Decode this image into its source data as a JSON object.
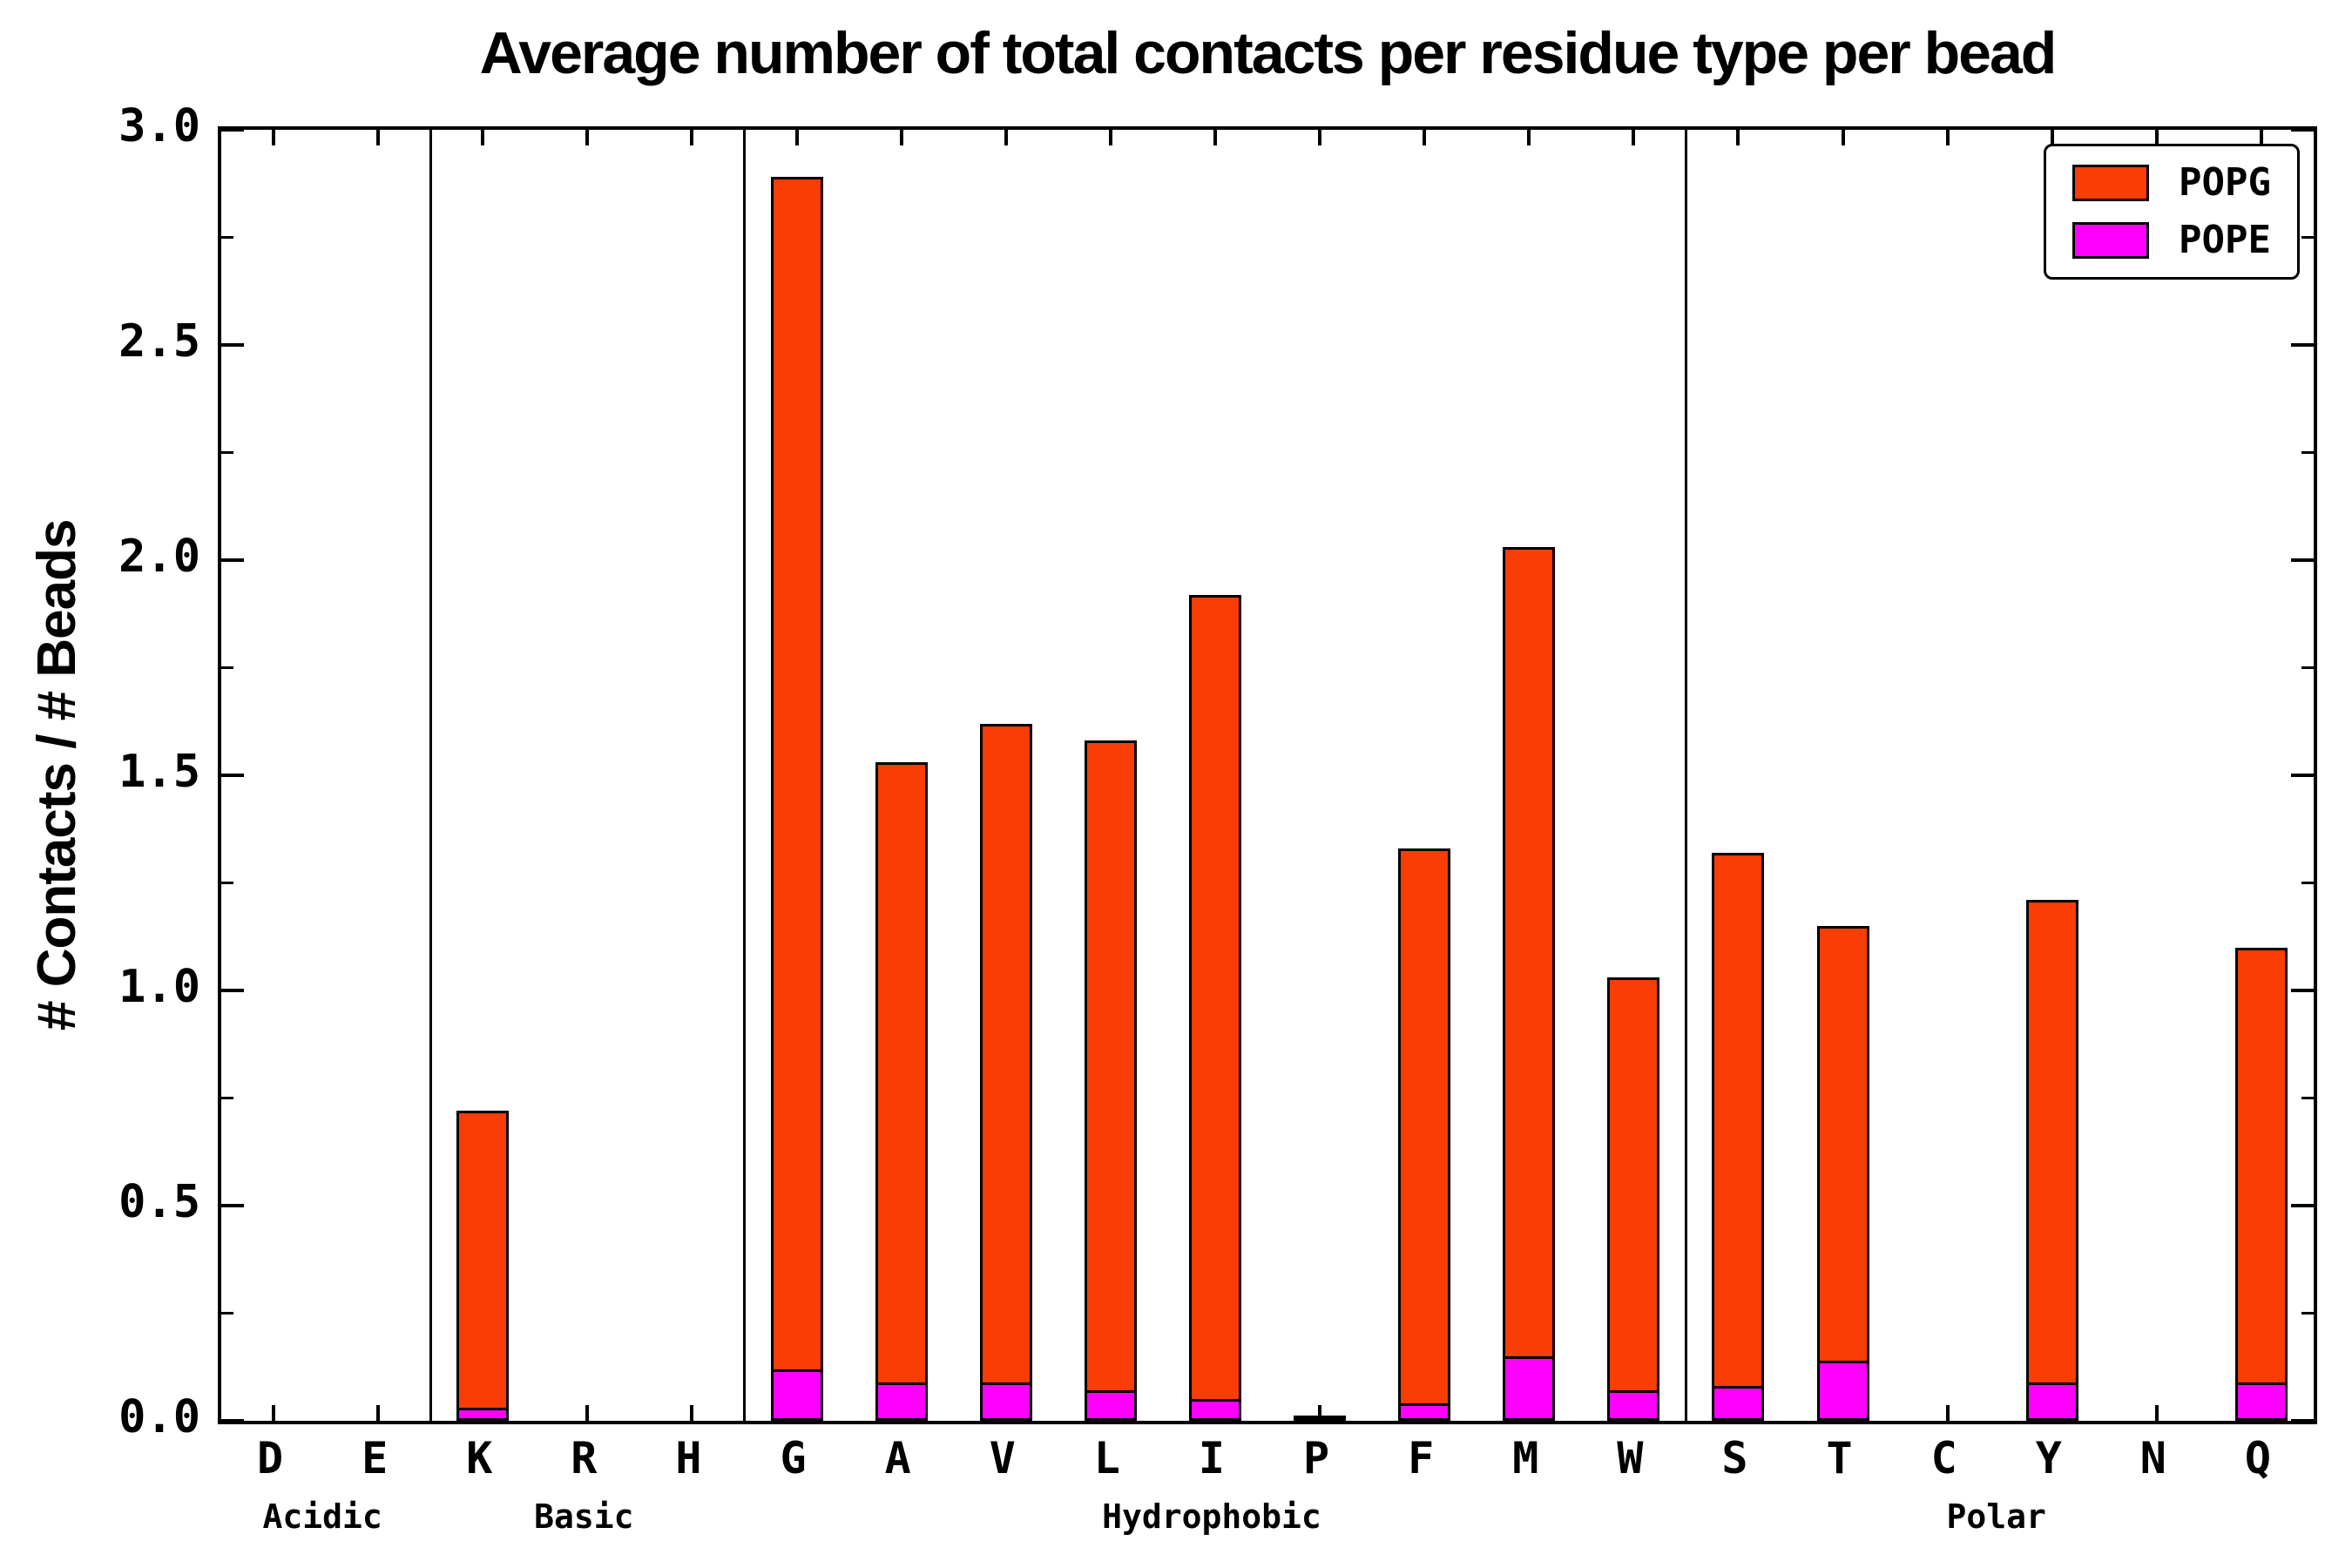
{
  "chart_data": {
    "type": "bar",
    "stacked": true,
    "title": "Average number of total contacts per residue type per bead",
    "xlabel": "",
    "ylabel": "# Contacts / # Beads",
    "ylim": [
      0,
      3.0
    ],
    "yticks": [
      "0.0",
      "0.5",
      "1.0",
      "1.5",
      "2.0",
      "2.5",
      "3.0"
    ],
    "ytick_values": [
      0.0,
      0.5,
      1.0,
      1.5,
      2.0,
      2.5,
      3.0
    ],
    "ytick_minor_step": 0.25,
    "grid": false,
    "legend_position": "upper right",
    "legend": [
      {
        "label": "POPG",
        "color": "#fa3c05"
      },
      {
        "label": "POPE",
        "color": "#ff00ff"
      }
    ],
    "groups": [
      {
        "label": "Acidic",
        "categories": [
          "D",
          "E"
        ]
      },
      {
        "label": "Basic",
        "categories": [
          "K",
          "R",
          "H"
        ]
      },
      {
        "label": "Hydrophobic",
        "categories": [
          "G",
          "A",
          "V",
          "L",
          "I",
          "P",
          "F",
          "M",
          "W"
        ]
      },
      {
        "label": "Polar",
        "categories": [
          "S",
          "T",
          "C",
          "Y",
          "N",
          "Q"
        ]
      }
    ],
    "stack_order": [
      "POPE",
      "POPG"
    ],
    "series": [
      {
        "name": "POPE",
        "color": "#ff00ff",
        "values": {
          "D": 0.0,
          "E": 0.0,
          "K": 0.03,
          "R": 0.0,
          "H": 0.0,
          "G": 0.12,
          "A": 0.09,
          "V": 0.09,
          "L": 0.07,
          "I": 0.05,
          "P": 0.005,
          "F": 0.04,
          "M": 0.15,
          "W": 0.07,
          "S": 0.08,
          "T": 0.14,
          "C": 0.0,
          "Y": 0.09,
          "N": 0.0,
          "Q": 0.09
        }
      },
      {
        "name": "POPG",
        "color": "#fa3c05",
        "values": {
          "D": 0.0,
          "E": 0.0,
          "K": 0.69,
          "R": 0.0,
          "H": 0.0,
          "G": 2.77,
          "A": 1.44,
          "V": 1.53,
          "L": 1.51,
          "I": 1.87,
          "P": 0.005,
          "F": 1.29,
          "M": 1.88,
          "W": 0.96,
          "S": 1.24,
          "T": 1.01,
          "C": 0.0,
          "Y": 1.12,
          "N": 0.0,
          "Q": 1.01
        }
      }
    ],
    "totals": {
      "D": 0.0,
      "E": 0.0,
      "K": 0.72,
      "R": 0.0,
      "H": 0.0,
      "G": 2.89,
      "A": 1.53,
      "V": 1.62,
      "L": 1.58,
      "I": 1.92,
      "P": 0.01,
      "F": 1.33,
      "M": 2.03,
      "W": 1.03,
      "S": 1.32,
      "T": 1.15,
      "C": 0.0,
      "Y": 1.21,
      "N": 0.0,
      "Q": 1.1
    }
  },
  "colors": {
    "axis": "#000000",
    "background": "#ffffff",
    "POPG": "#fa3c05",
    "POPE": "#ff00ff"
  }
}
